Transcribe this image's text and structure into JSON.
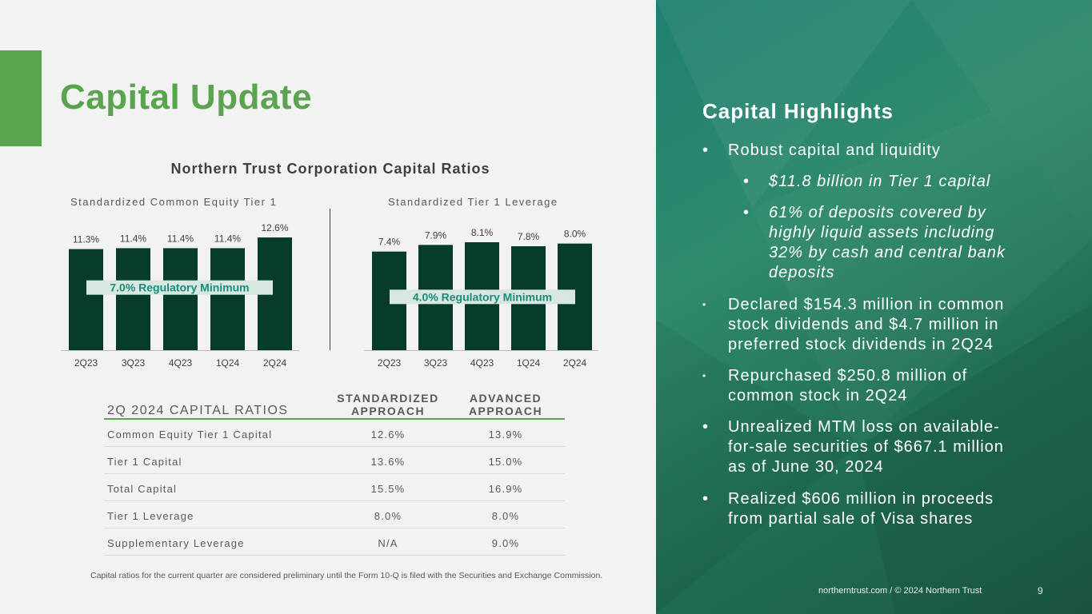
{
  "page": {
    "title": "Capital Update",
    "footnote": "Capital ratios for the current quarter are considered preliminary until the Form 10-Q is filed with the Securities and Exchange Commission.",
    "footer_text": "northerntrust.com / © 2024 Northern Trust",
    "page_number": "9"
  },
  "colors": {
    "accent": "#5aa34f",
    "bar": "#073b2a",
    "reg_band": "#d6e8e0",
    "reg_text": "#1e8c7a"
  },
  "chart_data": [
    {
      "type": "bar",
      "title": "Northern Trust Corporation Capital Ratios",
      "subtitle": "Standardized Common Equity Tier 1",
      "categories": [
        "2Q23",
        "3Q23",
        "4Q23",
        "1Q24",
        "2Q24"
      ],
      "values": [
        11.3,
        11.4,
        11.4,
        11.4,
        12.6
      ],
      "data_labels": [
        "11.3%",
        "11.4%",
        "11.4%",
        "11.4%",
        "12.6%"
      ],
      "reference_line": {
        "value": 7.0,
        "label": "7.0% Regulatory Minimum"
      },
      "ylim": [
        0,
        12.6
      ]
    },
    {
      "type": "bar",
      "subtitle": "Standardized Tier 1 Leverage",
      "categories": [
        "2Q23",
        "3Q23",
        "4Q23",
        "1Q24",
        "2Q24"
      ],
      "values": [
        7.4,
        7.9,
        8.1,
        7.8,
        8.0
      ],
      "data_labels": [
        "7.4%",
        "7.9%",
        "8.1%",
        "7.8%",
        "8.0%"
      ],
      "reference_line": {
        "value": 4.0,
        "label": "4.0% Regulatory Minimum"
      },
      "ylim": [
        0,
        8.1
      ]
    }
  ],
  "table": {
    "title": "2Q 2024 CAPITAL RATIOS",
    "col1_line1": "STANDARDIZED",
    "col1_line2": "APPROACH",
    "col2_line1": "ADVANCED",
    "col2_line2": "APPROACH",
    "rows": [
      {
        "label": "Common Equity Tier 1 Capital",
        "standardized": "12.6%",
        "advanced": "13.9%"
      },
      {
        "label": "Tier 1 Capital",
        "standardized": "13.6%",
        "advanced": "15.0%"
      },
      {
        "label": "Total Capital",
        "standardized": "15.5%",
        "advanced": "16.9%"
      },
      {
        "label": "Tier 1 Leverage",
        "standardized": "8.0%",
        "advanced": "8.0%"
      },
      {
        "label": "Supplementary Leverage",
        "standardized": "N/A",
        "advanced": "9.0%"
      }
    ]
  },
  "highlights": {
    "title": "Capital Highlights",
    "b1": "Robust capital and liquidity",
    "b1a": "$11.8 billion in Tier 1 capital",
    "b1b_l1": "61% of deposits covered by",
    "b1b_l2": "highly liquid assets including",
    "b1b_l3": "32% by cash and central bank",
    "b1b_l4": "deposits",
    "b2_l1": "Declared $154.3 million in common",
    "b2_l2": "stock dividends and $4.7 million in",
    "b2_l3": "preferred stock dividends in 2Q24",
    "b3_l1": "Repurchased $250.8 million of",
    "b3_l2": "common stock in 2Q24",
    "b4_l1": "Unrealized MTM loss on available-",
    "b4_l2": "for-sale securities of $667.1 million",
    "b4_l3": "as of June 30, 2024",
    "b5_l1": "Realized $606 million in proceeds",
    "b5_l2": "from partial sale of Visa shares"
  }
}
